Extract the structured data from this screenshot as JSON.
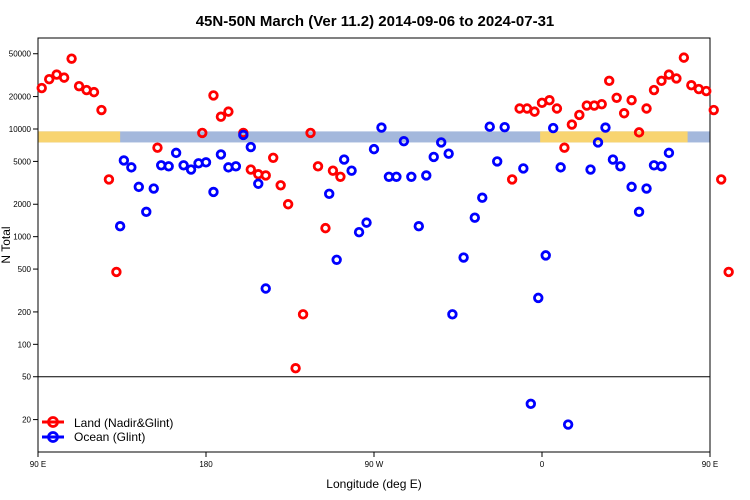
{
  "chart_data": {
    "type": "scatter",
    "title": "45N-50N March (Ver 11.2)   2014-09-06 to 2024-07-31",
    "xlabel": "Longitude (deg E)",
    "ylabel": "N Total",
    "xlim": [
      90,
      450
    ],
    "ylim": [
      10,
      70000
    ],
    "y_scale": "log",
    "x_ticks": [
      {
        "value": 90,
        "label": "90 E"
      },
      {
        "value": 180,
        "label": "180"
      },
      {
        "value": 270,
        "label": "90 W"
      },
      {
        "value": 360,
        "label": "0"
      },
      {
        "value": 450,
        "label": "90 E"
      },
      {
        "value": 540,
        "label": "180"
      }
    ],
    "y_ticks": [
      {
        "value": 20,
        "label": "20"
      },
      {
        "value": 50,
        "label": "50"
      },
      {
        "value": 100,
        "label": "100"
      },
      {
        "value": 200,
        "label": "200"
      },
      {
        "value": 500,
        "label": "500"
      },
      {
        "value": 1000,
        "label": "1000"
      },
      {
        "value": 2000,
        "label": "2000"
      },
      {
        "value": 5000,
        "label": "5000"
      },
      {
        "value": 10000,
        "label": "10000"
      },
      {
        "value": 20000,
        "label": "20000"
      },
      {
        "value": 50000,
        "label": "50000"
      }
    ],
    "reference_line_y": 50,
    "grid": false,
    "legend_position": "bottom-left",
    "land_ocean_band": {
      "y_low": 7500,
      "y_high": 9500
    },
    "land_segments": [
      [
        90,
        134
      ],
      [
        359,
        400
      ],
      [
        399,
        438
      ],
      [
        455,
        494
      ],
      [
        494,
        540
      ]
    ],
    "series": [
      {
        "name": "Land (Nadir&Glint)",
        "color": "#ff0000",
        "points": [
          [
            92,
            24000
          ],
          [
            96,
            29000
          ],
          [
            100,
            32000
          ],
          [
            104,
            30000
          ],
          [
            108,
            45000
          ],
          [
            112,
            25000
          ],
          [
            116,
            23000
          ],
          [
            120,
            22000
          ],
          [
            124,
            15000
          ],
          [
            128,
            3400
          ],
          [
            132,
            470
          ],
          [
            154,
            6700
          ],
          [
            178,
            9200
          ],
          [
            184,
            20500
          ],
          [
            188,
            13000
          ],
          [
            192,
            14500
          ],
          [
            200,
            9200
          ],
          [
            204,
            4200
          ],
          [
            208,
            3800
          ],
          [
            212,
            3700
          ],
          [
            216,
            5400
          ],
          [
            220,
            3000
          ],
          [
            224,
            2000
          ],
          [
            228,
            60
          ],
          [
            232,
            190
          ],
          [
            236,
            9200
          ],
          [
            240,
            4500
          ],
          [
            244,
            1200
          ],
          [
            248,
            4100
          ],
          [
            252,
            3600
          ],
          [
            344,
            3400
          ],
          [
            348,
            15500
          ],
          [
            352,
            15500
          ],
          [
            356,
            14500
          ],
          [
            360,
            17500
          ],
          [
            364,
            18500
          ],
          [
            368,
            15500
          ],
          [
            372,
            6700
          ],
          [
            376,
            11000
          ],
          [
            380,
            13500
          ],
          [
            384,
            16500
          ],
          [
            388,
            16500
          ],
          [
            392,
            17000
          ],
          [
            396,
            28000
          ],
          [
            400,
            19500
          ],
          [
            404,
            14000
          ],
          [
            408,
            18500
          ],
          [
            412,
            9300
          ],
          [
            416,
            15500
          ],
          [
            420,
            23000
          ],
          [
            424,
            28000
          ],
          [
            428,
            32000
          ],
          [
            432,
            29500
          ],
          [
            436,
            46000
          ],
          [
            440,
            25500
          ],
          [
            444,
            23500
          ],
          [
            448,
            22500
          ],
          [
            452,
            15000
          ],
          [
            456,
            3400
          ],
          [
            460,
            470
          ]
        ]
      },
      {
        "name": "Ocean (Glint)",
        "color": "#0000ff",
        "points": [
          [
            134,
            1250
          ],
          [
            136,
            5100
          ],
          [
            140,
            4400
          ],
          [
            144,
            2900
          ],
          [
            148,
            1700
          ],
          [
            152,
            2800
          ],
          [
            156,
            4600
          ],
          [
            160,
            4500
          ],
          [
            164,
            6000
          ],
          [
            168,
            4600
          ],
          [
            172,
            4200
          ],
          [
            176,
            4800
          ],
          [
            180,
            4900
          ],
          [
            184,
            2600
          ],
          [
            188,
            5800
          ],
          [
            192,
            4400
          ],
          [
            196,
            4500
          ],
          [
            200,
            8800
          ],
          [
            204,
            6800
          ],
          [
            208,
            3100
          ],
          [
            212,
            330
          ],
          [
            246,
            2500
          ],
          [
            250,
            610
          ],
          [
            254,
            5200
          ],
          [
            258,
            4100
          ],
          [
            262,
            1100
          ],
          [
            266,
            1350
          ],
          [
            270,
            6500
          ],
          [
            274,
            10300
          ],
          [
            278,
            3600
          ],
          [
            282,
            3600
          ],
          [
            286,
            7700
          ],
          [
            290,
            3600
          ],
          [
            294,
            1250
          ],
          [
            298,
            3700
          ],
          [
            302,
            5500
          ],
          [
            306,
            7500
          ],
          [
            310,
            5900
          ],
          [
            312,
            190
          ],
          [
            318,
            640
          ],
          [
            324,
            1500
          ],
          [
            328,
            2300
          ],
          [
            332,
            10500
          ],
          [
            336,
            5000
          ],
          [
            340,
            10400
          ],
          [
            350,
            4300
          ],
          [
            354,
            28
          ],
          [
            358,
            270
          ],
          [
            362,
            670
          ],
          [
            366,
            10200
          ],
          [
            370,
            4400
          ],
          [
            374,
            18
          ],
          [
            386,
            4200
          ],
          [
            390,
            7500
          ],
          [
            394,
            10300
          ],
          [
            398,
            5200
          ],
          [
            402,
            4500
          ],
          [
            408,
            2900
          ],
          [
            412,
            1700
          ],
          [
            416,
            2800
          ],
          [
            420,
            4600
          ],
          [
            424,
            4500
          ],
          [
            428,
            6000
          ]
        ]
      }
    ]
  }
}
